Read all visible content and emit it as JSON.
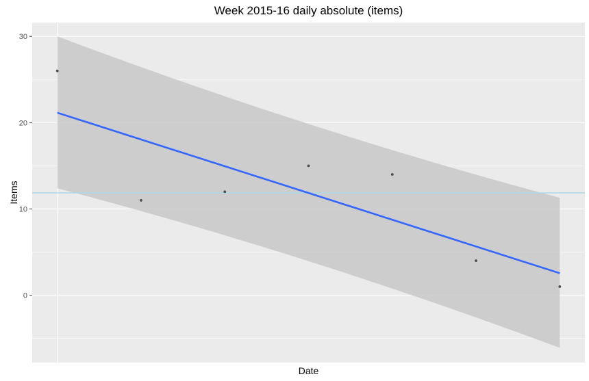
{
  "chart_data": {
    "type": "scatter",
    "title": "Week 2015-16 daily absolute (items)",
    "xlabel": "Date",
    "ylabel": "Items",
    "x": [
      1,
      2,
      3,
      4,
      5,
      6,
      7
    ],
    "xlim": [
      0.7,
      7.3
    ],
    "ylim": [
      -7.8,
      31.6
    ],
    "yticks": [
      0,
      10,
      20,
      30
    ],
    "y_gridlines": [
      -5,
      0,
      5,
      10,
      15,
      20,
      25,
      30
    ],
    "grid": true,
    "legend": "none",
    "series": [
      {
        "kind": "points",
        "values": [
          26,
          11,
          12,
          15,
          14,
          4,
          1
        ]
      }
    ],
    "trend_line": {
      "start": 21.15,
      "end": 2.55
    },
    "confidence_band": {
      "upper_start": 30.0,
      "upper_end": 11.3,
      "lower_start": 12.4,
      "lower_end": -6.1
    },
    "mean_line": 11.86,
    "colors": {
      "panel": "#ebebeb",
      "grid": "#ffffff",
      "points": "#4d4d4d",
      "trend": "#3366ff",
      "band": "#c8c8c8",
      "mean_line": "#add8e6"
    }
  }
}
